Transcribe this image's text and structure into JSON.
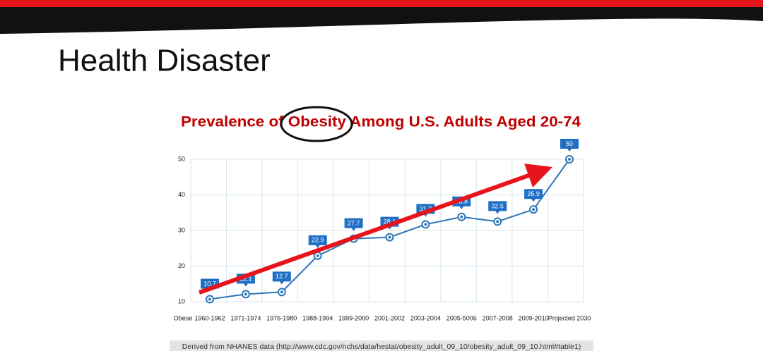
{
  "title": "Health Disaster",
  "chart_data": {
    "type": "line",
    "title": "Prevalence of Obesity Among U.S. Adults Aged 20-74",
    "x_label": "Obese",
    "categories": [
      "1960-1962",
      "1971-1974",
      "1976-1980",
      "1988-1994",
      "1999-2000",
      "2001-2002",
      "2003-2004",
      "2005-5006",
      "2007-2008",
      "2009-2010",
      "Projected 2030"
    ],
    "values": [
      10.7,
      12.1,
      12.7,
      22.9,
      27.7,
      28.1,
      31.7,
      33.8,
      32.5,
      35.9,
      50
    ],
    "color": "#2e75b6",
    "ylim": [
      10,
      50
    ],
    "yticks": [
      10,
      20,
      30,
      40,
      50
    ],
    "grid": true
  },
  "source": "Derived from NHANES data (http://www.cdc.gov/nchs/data/hestat/obesity_adult_09_10/obesity_adult_09_10.html#table1)"
}
